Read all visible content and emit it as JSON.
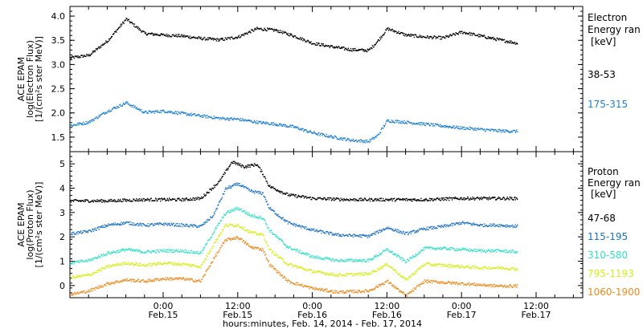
{
  "chart_data": [
    {
      "type": "scatter",
      "panel": "electron",
      "ylabel": [
        "ACE EPAM",
        "log(Electron Flux)",
        "[1/(cm²s ster MeV)]"
      ],
      "ylim": [
        1.2,
        4.2
      ],
      "yticks": [
        "1.5",
        "2.0",
        "2.5",
        "3.0",
        "3.5",
        "4.0"
      ],
      "legend_title": [
        "Electron",
        "Energy ran",
        "[keV]"
      ],
      "series": [
        {
          "name": "38-53",
          "color": "#000000",
          "points": [
            [
              0,
              3.15
            ],
            [
              6,
              3.2
            ],
            [
              12,
              3.5
            ],
            [
              18,
              3.95
            ],
            [
              24,
              3.65
            ],
            [
              30,
              3.62
            ],
            [
              36,
              3.6
            ],
            [
              42,
              3.55
            ],
            [
              48,
              3.52
            ],
            [
              54,
              3.58
            ],
            [
              60,
              3.75
            ],
            [
              66,
              3.72
            ],
            [
              72,
              3.6
            ],
            [
              78,
              3.45
            ],
            [
              84,
              3.38
            ],
            [
              90,
              3.32
            ],
            [
              96,
              3.3
            ],
            [
              99,
              3.5
            ],
            [
              102,
              3.75
            ],
            [
              108,
              3.62
            ],
            [
              114,
              3.58
            ],
            [
              120,
              3.56
            ],
            [
              126,
              3.68
            ],
            [
              132,
              3.6
            ],
            [
              138,
              3.52
            ],
            [
              144,
              3.45
            ]
          ]
        },
        {
          "name": "175-315",
          "color": "#1c7fd6",
          "points": [
            [
              0,
              1.75
            ],
            [
              6,
              1.82
            ],
            [
              12,
              2.05
            ],
            [
              18,
              2.22
            ],
            [
              24,
              2.02
            ],
            [
              30,
              2.05
            ],
            [
              36,
              2.0
            ],
            [
              42,
              1.95
            ],
            [
              48,
              1.9
            ],
            [
              54,
              1.88
            ],
            [
              60,
              1.82
            ],
            [
              66,
              1.78
            ],
            [
              72,
              1.72
            ],
            [
              78,
              1.6
            ],
            [
              84,
              1.52
            ],
            [
              90,
              1.45
            ],
            [
              96,
              1.42
            ],
            [
              99,
              1.55
            ],
            [
              102,
              1.85
            ],
            [
              108,
              1.82
            ],
            [
              114,
              1.78
            ],
            [
              120,
              1.74
            ],
            [
              126,
              1.7
            ],
            [
              132,
              1.67
            ],
            [
              138,
              1.64
            ],
            [
              144,
              1.63
            ]
          ]
        }
      ]
    },
    {
      "type": "scatter",
      "panel": "proton",
      "ylabel": [
        "ACE EPAM",
        "log(Proton Flux)",
        "[1/(cm²s ster MeV)]"
      ],
      "ylim": [
        -0.5,
        5.5
      ],
      "yticks": [
        "0",
        "1",
        "2",
        "3",
        "4",
        "5"
      ],
      "legend_title": [
        "Proton",
        "Energy ran",
        "[keV]"
      ],
      "series": [
        {
          "name": "47-68",
          "color": "#000000",
          "points": [
            [
              0,
              3.5
            ],
            [
              12,
              3.5
            ],
            [
              24,
              3.55
            ],
            [
              36,
              3.55
            ],
            [
              42,
              3.6
            ],
            [
              48,
              4.3
            ],
            [
              52,
              5.1
            ],
            [
              56,
              4.9
            ],
            [
              60,
              5.0
            ],
            [
              62,
              4.6
            ],
            [
              64,
              4.1
            ],
            [
              70,
              3.75
            ],
            [
              78,
              3.6
            ],
            [
              90,
              3.55
            ],
            [
              102,
              3.55
            ],
            [
              114,
              3.55
            ],
            [
              126,
              3.6
            ],
            [
              138,
              3.6
            ],
            [
              144,
              3.6
            ]
          ]
        },
        {
          "name": "115-195",
          "color": "#1c72c8",
          "points": [
            [
              0,
              2.15
            ],
            [
              6,
              2.25
            ],
            [
              12,
              2.5
            ],
            [
              18,
              2.6
            ],
            [
              24,
              2.5
            ],
            [
              30,
              2.55
            ],
            [
              36,
              2.5
            ],
            [
              42,
              2.45
            ],
            [
              46,
              2.9
            ],
            [
              50,
              4.0
            ],
            [
              54,
              4.2
            ],
            [
              58,
              3.9
            ],
            [
              62,
              3.8
            ],
            [
              64,
              3.2
            ],
            [
              70,
              2.6
            ],
            [
              78,
              2.3
            ],
            [
              86,
              2.1
            ],
            [
              96,
              2.05
            ],
            [
              102,
              2.4
            ],
            [
              108,
              2.15
            ],
            [
              114,
              2.35
            ],
            [
              120,
              2.45
            ],
            [
              126,
              2.6
            ],
            [
              132,
              2.5
            ],
            [
              138,
              2.5
            ],
            [
              144,
              2.45
            ]
          ]
        },
        {
          "name": "310-580",
          "color": "#2fe0c8",
          "points": [
            [
              0,
              0.95
            ],
            [
              6,
              1.05
            ],
            [
              12,
              1.35
            ],
            [
              18,
              1.5
            ],
            [
              24,
              1.4
            ],
            [
              30,
              1.45
            ],
            [
              36,
              1.45
            ],
            [
              42,
              1.35
            ],
            [
              46,
              2.2
            ],
            [
              50,
              3.0
            ],
            [
              54,
              3.2
            ],
            [
              58,
              2.9
            ],
            [
              62,
              2.8
            ],
            [
              64,
              2.3
            ],
            [
              70,
              1.6
            ],
            [
              78,
              1.2
            ],
            [
              86,
              1.05
            ],
            [
              96,
              1.05
            ],
            [
              102,
              1.5
            ],
            [
              108,
              1.0
            ],
            [
              114,
              1.55
            ],
            [
              120,
              1.55
            ],
            [
              126,
              1.5
            ],
            [
              132,
              1.45
            ],
            [
              138,
              1.45
            ],
            [
              144,
              1.4
            ]
          ]
        },
        {
          "name": "795-1193",
          "color": "#d6ee14",
          "points": [
            [
              0,
              0.35
            ],
            [
              6,
              0.45
            ],
            [
              12,
              0.8
            ],
            [
              18,
              0.95
            ],
            [
              24,
              0.85
            ],
            [
              30,
              0.95
            ],
            [
              36,
              0.9
            ],
            [
              42,
              0.8
            ],
            [
              46,
              1.7
            ],
            [
              50,
              2.5
            ],
            [
              54,
              2.5
            ],
            [
              58,
              2.2
            ],
            [
              62,
              2.1
            ],
            [
              64,
              1.5
            ],
            [
              70,
              0.9
            ],
            [
              78,
              0.6
            ],
            [
              86,
              0.45
            ],
            [
              96,
              0.5
            ],
            [
              102,
              0.9
            ],
            [
              108,
              0.25
            ],
            [
              114,
              0.9
            ],
            [
              120,
              0.85
            ],
            [
              126,
              0.8
            ],
            [
              132,
              0.75
            ],
            [
              138,
              0.75
            ],
            [
              144,
              0.7
            ]
          ]
        },
        {
          "name": "1060-1900",
          "color": "#ef8a1c",
          "points": [
            [
              0,
              -0.35
            ],
            [
              6,
              -0.2
            ],
            [
              12,
              0.1
            ],
            [
              18,
              0.25
            ],
            [
              24,
              0.2
            ],
            [
              30,
              0.3
            ],
            [
              36,
              0.3
            ],
            [
              42,
              0.2
            ],
            [
              46,
              1.1
            ],
            [
              50,
              1.9
            ],
            [
              54,
              2.0
            ],
            [
              58,
              1.6
            ],
            [
              62,
              1.5
            ],
            [
              64,
              0.9
            ],
            [
              70,
              0.2
            ],
            [
              78,
              -0.1
            ],
            [
              86,
              -0.25
            ],
            [
              96,
              -0.2
            ],
            [
              102,
              0.2
            ],
            [
              108,
              -0.4
            ],
            [
              114,
              0.2
            ],
            [
              120,
              0.15
            ],
            [
              126,
              0.1
            ],
            [
              132,
              0.05
            ],
            [
              138,
              0.0
            ],
            [
              144,
              0.0
            ]
          ]
        }
      ]
    }
  ],
  "xaxis": {
    "title": "hours:minutes, Feb. 14, 2014 - Feb. 17, 2014",
    "range_hours": [
      0,
      165
    ],
    "ticks": [
      {
        "h": 30,
        "time": "0:00",
        "date": "Feb.15"
      },
      {
        "h": 54,
        "time": "12:00",
        "date": "Feb.15"
      },
      {
        "h": 78,
        "time": "0:00",
        "date": "Feb.16"
      },
      {
        "h": 102,
        "time": "12:00",
        "date": "Feb.16"
      },
      {
        "h": 126,
        "time": "0:00",
        "date": "Feb.17"
      },
      {
        "h": 150,
        "time": "12:00",
        "date": "Feb.17"
      }
    ]
  }
}
